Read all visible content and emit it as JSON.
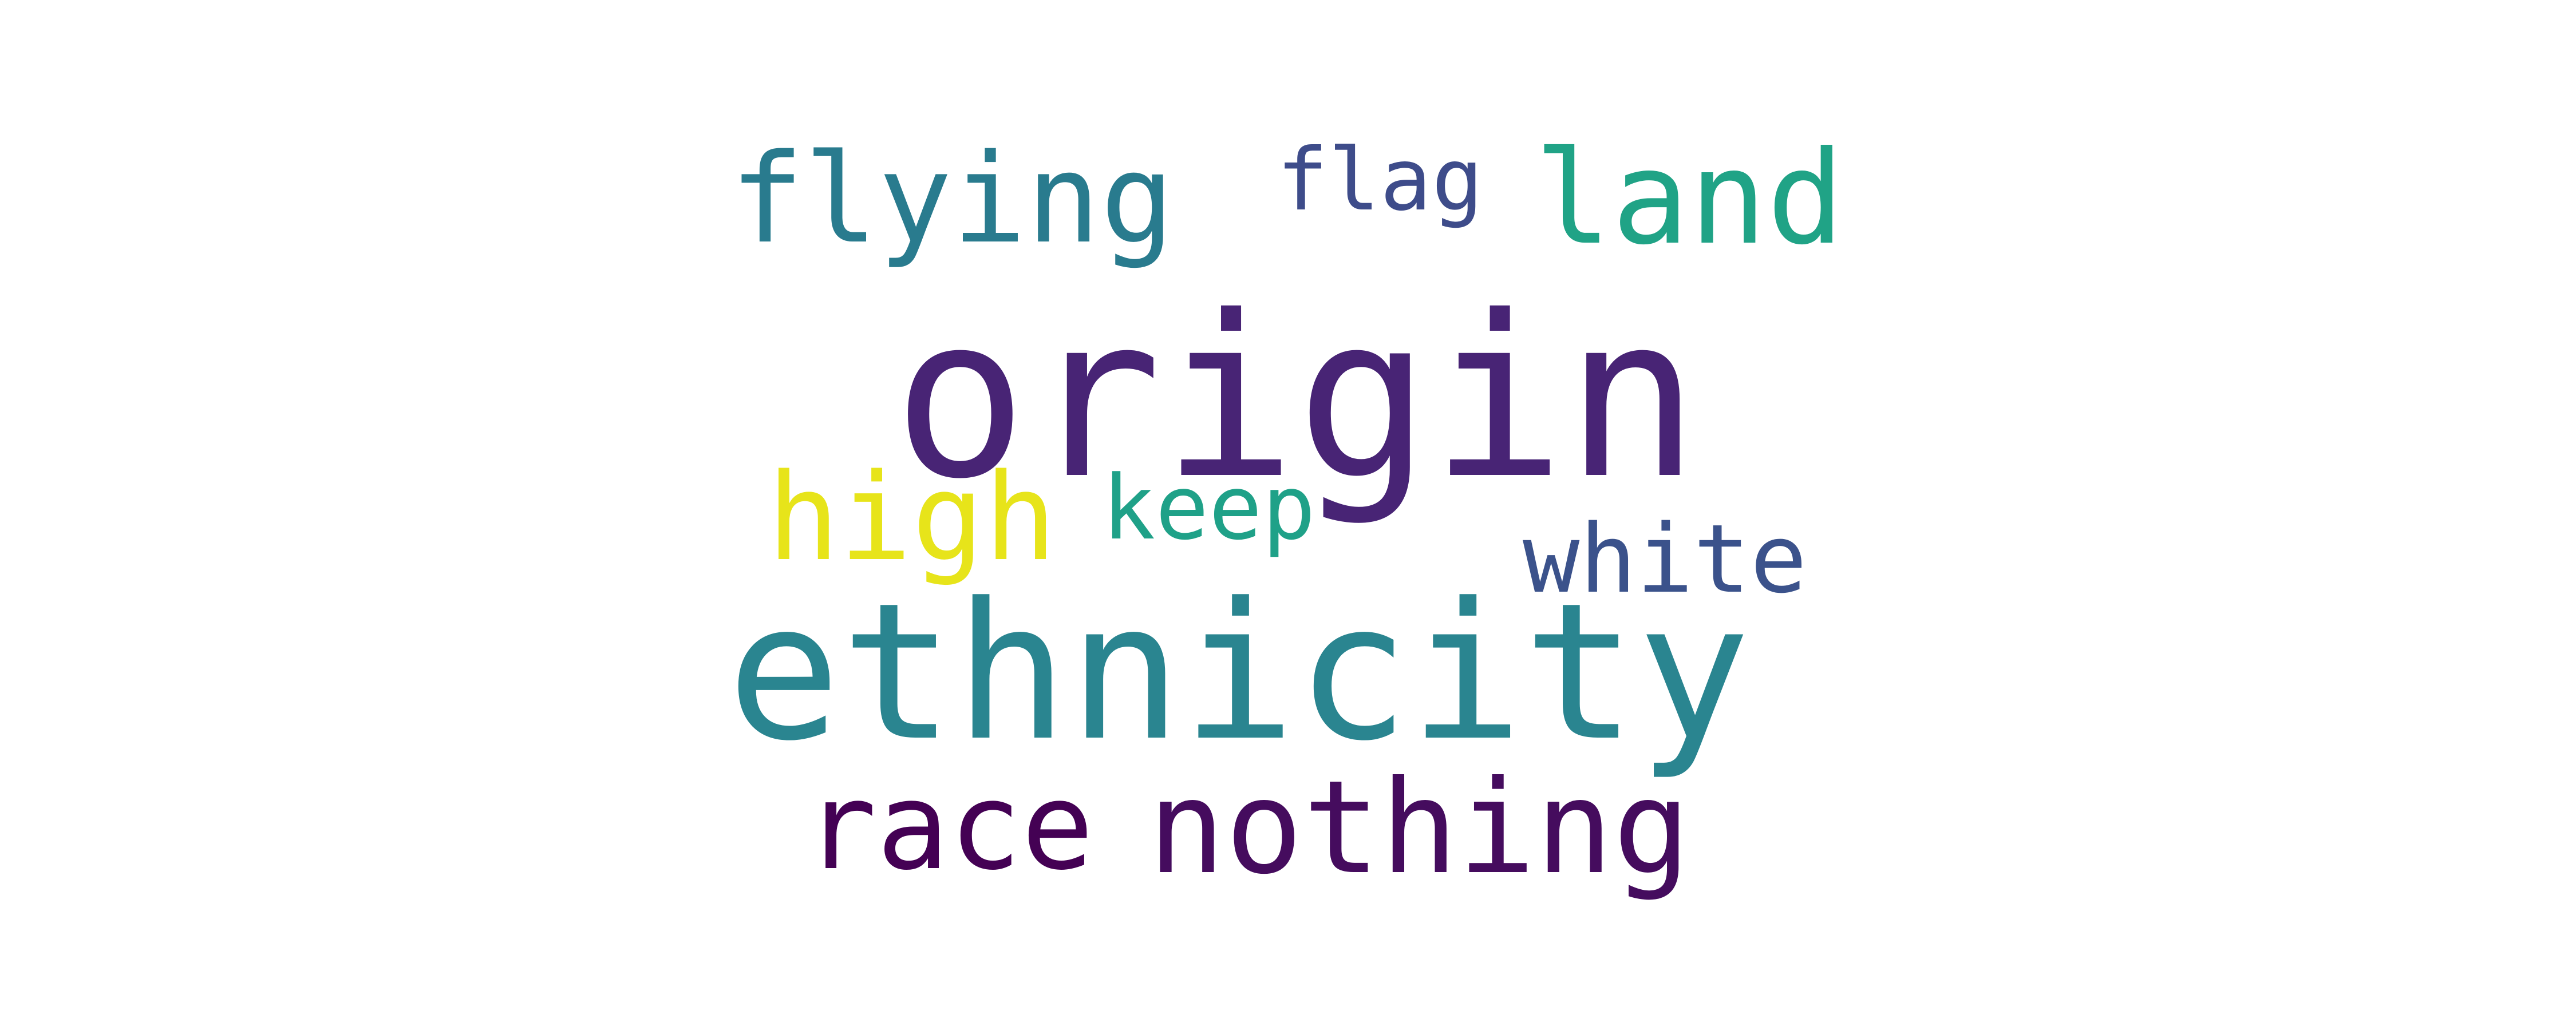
{
  "words": {
    "origin": {
      "text": "origin",
      "color": "#482475"
    },
    "ethnicity": {
      "text": "ethnicity",
      "color": "#2a8590"
    },
    "flying": {
      "text": "flying",
      "color": "#297b8e"
    },
    "flag": {
      "text": "flag",
      "color": "#3e4c8a"
    },
    "land": {
      "text": "land",
      "color": "#20a386"
    },
    "high": {
      "text": "high",
      "color": "#e7e41a"
    },
    "keep": {
      "text": "keep",
      "color": "#1fa188"
    },
    "white": {
      "text": "white",
      "color": "#3b528b"
    },
    "race": {
      "text": "race",
      "color": "#440154"
    },
    "nothing": {
      "text": "nothing",
      "color": "#450c5e"
    }
  }
}
